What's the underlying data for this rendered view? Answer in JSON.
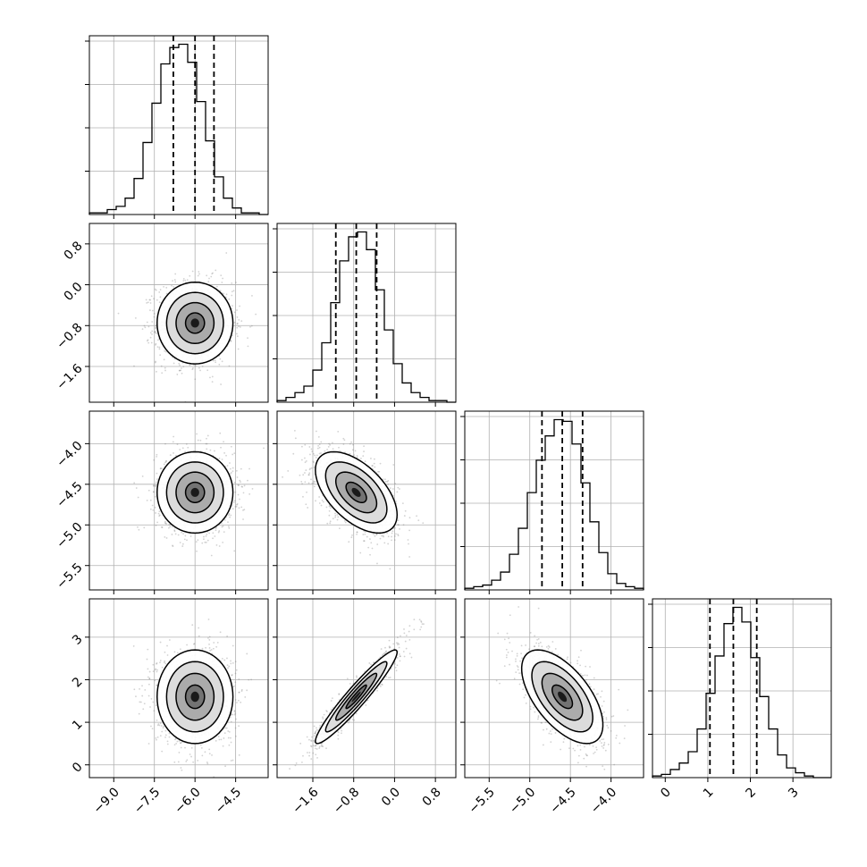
{
  "chart_data": {
    "type": "corner",
    "n_params": 4,
    "params": [
      {
        "index": 0,
        "range": [
          -9.9,
          -3.3
        ],
        "ticks": [
          -9.0,
          -7.5,
          -6.0,
          -4.5
        ],
        "tick_labels": [
          "−9.0",
          "−7.5",
          "−6.0",
          "−4.5"
        ],
        "quantiles": [
          -6.8,
          -6.0,
          -5.3
        ],
        "mean": -6.0,
        "sd": 0.7,
        "hist_counts": [
          1,
          1,
          3,
          5,
          10,
          22,
          44,
          68,
          92,
          102,
          104,
          93,
          69,
          45,
          23,
          10,
          4,
          1,
          1,
          0
        ]
      },
      {
        "index": 1,
        "range": [
          -2.3,
          1.2
        ],
        "ticks": [
          -1.6,
          -0.8,
          0.0,
          0.8
        ],
        "tick_labels": [
          "−1.6",
          "−0.8",
          "0.0",
          "0.8"
        ],
        "quantiles": [
          -1.15,
          -0.75,
          -0.35
        ],
        "mean": -0.75,
        "sd": 0.4,
        "hist_counts": [
          1,
          3,
          6,
          10,
          20,
          37,
          62,
          88,
          103,
          106,
          95,
          70,
          45,
          24,
          12,
          6,
          3,
          1,
          1,
          0
        ]
      },
      {
        "index": 2,
        "range": [
          -5.8,
          -3.6
        ],
        "ticks": [
          -5.5,
          -5.0,
          -4.5,
          -4.0
        ],
        "tick_labels": [
          "−5.5",
          "−5.0",
          "−4.5",
          "−4.0"
        ],
        "quantiles": [
          -4.85,
          -4.6,
          -4.35
        ],
        "mean": -4.6,
        "sd": 0.25,
        "hist_counts": [
          1,
          2,
          3,
          6,
          11,
          22,
          38,
          60,
          80,
          95,
          105,
          104,
          90,
          66,
          42,
          23,
          10,
          4,
          2,
          1
        ]
      },
      {
        "index": 3,
        "range": [
          -0.3,
          3.9
        ],
        "ticks": [
          0,
          1,
          2,
          3
        ],
        "tick_labels": [
          "0",
          "1",
          "2",
          "3"
        ],
        "quantiles": [
          1.05,
          1.6,
          2.15
        ],
        "mean": 1.6,
        "sd": 0.55,
        "hist_counts": [
          1,
          2,
          5,
          9,
          16,
          30,
          52,
          75,
          95,
          105,
          96,
          74,
          50,
          30,
          14,
          6,
          3,
          1,
          0,
          0
        ]
      }
    ],
    "correlations": {
      "1_0": 0.0,
      "2_0": 0.0,
      "3_0": 0.0,
      "2_1": -0.55,
      "3_1": 0.95,
      "3_2": -0.6
    },
    "contour_levels_sigma": [
      0.5,
      1.0,
      1.5,
      2.0
    ],
    "grid": true
  },
  "style": {
    "line_color": "#000000",
    "grid_color": "#b0b0b0",
    "scatter_color": "#7f7f7f"
  }
}
